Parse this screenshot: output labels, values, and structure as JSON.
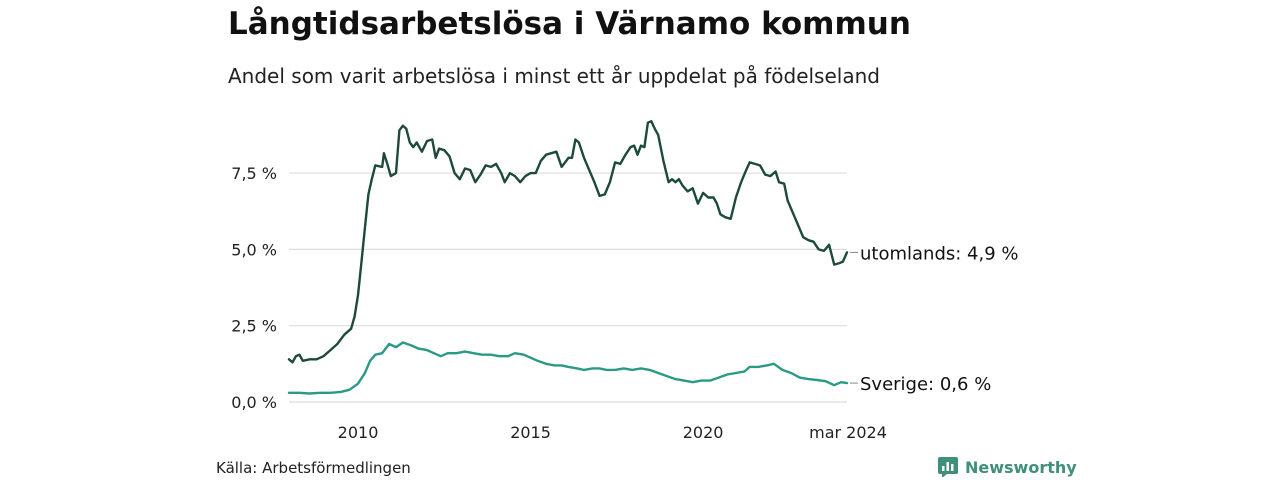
{
  "title": "Långtidsarbetslösa i Värnamo kommun",
  "subtitle": "Andel som varit arbetslösa i minst ett år uppdelat på födelseland",
  "source": "Källa: Arbetsförmedlingen",
  "brand": "Newsworthy",
  "colors": {
    "utomlands": "#1d4a3b",
    "sverige": "#2a9a86",
    "grid": "#dddddd",
    "brand": "#3f8f7a"
  },
  "chart_data": {
    "type": "line",
    "title": "Långtidsarbetslösa i Värnamo kommun",
    "subtitle": "Andel som varit arbetslösa i minst ett år uppdelat på födelseland",
    "xlabel": "",
    "ylabel": "",
    "xlim": [
      2008.0,
      2024.17
    ],
    "ylim": [
      0,
      9.5
    ],
    "grid": true,
    "x_ticks": [
      {
        "value": 2010,
        "label": "2010"
      },
      {
        "value": 2015,
        "label": "2015"
      },
      {
        "value": 2020,
        "label": "2020"
      },
      {
        "value": 2024.17,
        "label": "mar 2024"
      }
    ],
    "y_ticks": [
      {
        "value": 0,
        "label": "0,0 %"
      },
      {
        "value": 2.5,
        "label": "2,5 %"
      },
      {
        "value": 5,
        "label": "5,0 %"
      },
      {
        "value": 7.5,
        "label": "7,5 %"
      }
    ],
    "series": [
      {
        "name": "utomlands",
        "end_label": "utomlands: 4,9 %",
        "points": [
          [
            2008.0,
            1.4
          ],
          [
            2008.1,
            1.3
          ],
          [
            2008.2,
            1.5
          ],
          [
            2008.3,
            1.55
          ],
          [
            2008.4,
            1.35
          ],
          [
            2008.6,
            1.4
          ],
          [
            2008.8,
            1.4
          ],
          [
            2009.0,
            1.5
          ],
          [
            2009.2,
            1.7
          ],
          [
            2009.4,
            1.9
          ],
          [
            2009.6,
            2.2
          ],
          [
            2009.8,
            2.4
          ],
          [
            2009.9,
            2.8
          ],
          [
            2010.0,
            3.5
          ],
          [
            2010.1,
            4.6
          ],
          [
            2010.2,
            5.7
          ],
          [
            2010.3,
            6.8
          ],
          [
            2010.4,
            7.3
          ],
          [
            2010.5,
            7.75
          ],
          [
            2010.7,
            7.7
          ],
          [
            2010.75,
            8.15
          ],
          [
            2010.85,
            7.8
          ],
          [
            2010.95,
            7.4
          ],
          [
            2011.1,
            7.5
          ],
          [
            2011.2,
            8.9
          ],
          [
            2011.3,
            9.05
          ],
          [
            2011.4,
            8.95
          ],
          [
            2011.5,
            8.5
          ],
          [
            2011.6,
            8.35
          ],
          [
            2011.7,
            8.5
          ],
          [
            2011.85,
            8.2
          ],
          [
            2012.0,
            8.55
          ],
          [
            2012.15,
            8.6
          ],
          [
            2012.25,
            8.0
          ],
          [
            2012.35,
            8.3
          ],
          [
            2012.5,
            8.25
          ],
          [
            2012.65,
            8.05
          ],
          [
            2012.8,
            7.5
          ],
          [
            2012.95,
            7.3
          ],
          [
            2013.1,
            7.65
          ],
          [
            2013.25,
            7.6
          ],
          [
            2013.4,
            7.2
          ],
          [
            2013.55,
            7.45
          ],
          [
            2013.7,
            7.75
          ],
          [
            2013.85,
            7.7
          ],
          [
            2014.0,
            7.8
          ],
          [
            2014.15,
            7.5
          ],
          [
            2014.25,
            7.2
          ],
          [
            2014.4,
            7.5
          ],
          [
            2014.55,
            7.4
          ],
          [
            2014.7,
            7.2
          ],
          [
            2014.85,
            7.4
          ],
          [
            2015.0,
            7.5
          ],
          [
            2015.15,
            7.5
          ],
          [
            2015.3,
            7.9
          ],
          [
            2015.45,
            8.1
          ],
          [
            2015.6,
            8.15
          ],
          [
            2015.75,
            8.2
          ],
          [
            2015.9,
            7.7
          ],
          [
            2016.0,
            7.85
          ],
          [
            2016.1,
            8.0
          ],
          [
            2016.2,
            8.0
          ],
          [
            2016.3,
            8.6
          ],
          [
            2016.4,
            8.5
          ],
          [
            2016.55,
            8.0
          ],
          [
            2016.7,
            7.6
          ],
          [
            2016.85,
            7.2
          ],
          [
            2017.0,
            6.75
          ],
          [
            2017.15,
            6.8
          ],
          [
            2017.3,
            7.2
          ],
          [
            2017.45,
            7.85
          ],
          [
            2017.6,
            7.8
          ],
          [
            2017.75,
            8.1
          ],
          [
            2017.9,
            8.35
          ],
          [
            2018.0,
            8.4
          ],
          [
            2018.1,
            8.1
          ],
          [
            2018.2,
            8.4
          ],
          [
            2018.3,
            8.35
          ],
          [
            2018.4,
            9.15
          ],
          [
            2018.5,
            9.2
          ],
          [
            2018.6,
            8.95
          ],
          [
            2018.7,
            8.75
          ],
          [
            2018.85,
            7.9
          ],
          [
            2019.0,
            7.2
          ],
          [
            2019.1,
            7.3
          ],
          [
            2019.2,
            7.2
          ],
          [
            2019.3,
            7.3
          ],
          [
            2019.4,
            7.1
          ],
          [
            2019.55,
            6.9
          ],
          [
            2019.7,
            7.0
          ],
          [
            2019.85,
            6.5
          ],
          [
            2020.0,
            6.85
          ],
          [
            2020.15,
            6.7
          ],
          [
            2020.3,
            6.7
          ],
          [
            2020.4,
            6.5
          ],
          [
            2020.5,
            6.15
          ],
          [
            2020.65,
            6.05
          ],
          [
            2020.8,
            6.0
          ],
          [
            2020.95,
            6.7
          ],
          [
            2021.1,
            7.2
          ],
          [
            2021.25,
            7.6
          ],
          [
            2021.35,
            7.85
          ],
          [
            2021.5,
            7.8
          ],
          [
            2021.65,
            7.75
          ],
          [
            2021.8,
            7.45
          ],
          [
            2021.95,
            7.4
          ],
          [
            2022.1,
            7.55
          ],
          [
            2022.2,
            7.2
          ],
          [
            2022.35,
            7.15
          ],
          [
            2022.45,
            6.6
          ],
          [
            2022.6,
            6.2
          ],
          [
            2022.75,
            5.8
          ],
          [
            2022.9,
            5.4
          ],
          [
            2023.05,
            5.3
          ],
          [
            2023.2,
            5.25
          ],
          [
            2023.35,
            5.0
          ],
          [
            2023.5,
            4.95
          ],
          [
            2023.65,
            5.15
          ],
          [
            2023.8,
            4.5
          ],
          [
            2023.95,
            4.55
          ],
          [
            2024.05,
            4.6
          ],
          [
            2024.17,
            4.9
          ]
        ]
      },
      {
        "name": "sverige",
        "end_label": "Sverige: 0,6 %",
        "points": [
          [
            2008.0,
            0.3
          ],
          [
            2008.3,
            0.3
          ],
          [
            2008.6,
            0.28
          ],
          [
            2008.9,
            0.3
          ],
          [
            2009.2,
            0.3
          ],
          [
            2009.5,
            0.33
          ],
          [
            2009.75,
            0.4
          ],
          [
            2010.0,
            0.6
          ],
          [
            2010.2,
            0.95
          ],
          [
            2010.35,
            1.35
          ],
          [
            2010.5,
            1.55
          ],
          [
            2010.7,
            1.6
          ],
          [
            2010.9,
            1.9
          ],
          [
            2011.1,
            1.8
          ],
          [
            2011.3,
            1.95
          ],
          [
            2011.55,
            1.85
          ],
          [
            2011.75,
            1.75
          ],
          [
            2012.0,
            1.7
          ],
          [
            2012.2,
            1.6
          ],
          [
            2012.4,
            1.5
          ],
          [
            2012.6,
            1.6
          ],
          [
            2012.85,
            1.6
          ],
          [
            2013.1,
            1.65
          ],
          [
            2013.35,
            1.6
          ],
          [
            2013.6,
            1.55
          ],
          [
            2013.85,
            1.55
          ],
          [
            2014.1,
            1.5
          ],
          [
            2014.35,
            1.5
          ],
          [
            2014.55,
            1.6
          ],
          [
            2014.8,
            1.55
          ],
          [
            2015.0,
            1.45
          ],
          [
            2015.2,
            1.35
          ],
          [
            2015.45,
            1.25
          ],
          [
            2015.7,
            1.2
          ],
          [
            2015.9,
            1.2
          ],
          [
            2016.1,
            1.15
          ],
          [
            2016.35,
            1.1
          ],
          [
            2016.55,
            1.05
          ],
          [
            2016.8,
            1.1
          ],
          [
            2017.0,
            1.1
          ],
          [
            2017.2,
            1.05
          ],
          [
            2017.45,
            1.05
          ],
          [
            2017.7,
            1.1
          ],
          [
            2017.95,
            1.05
          ],
          [
            2018.2,
            1.1
          ],
          [
            2018.45,
            1.05
          ],
          [
            2018.7,
            0.95
          ],
          [
            2018.95,
            0.85
          ],
          [
            2019.2,
            0.75
          ],
          [
            2019.45,
            0.7
          ],
          [
            2019.7,
            0.65
          ],
          [
            2019.95,
            0.7
          ],
          [
            2020.2,
            0.7
          ],
          [
            2020.45,
            0.8
          ],
          [
            2020.7,
            0.9
          ],
          [
            2020.95,
            0.95
          ],
          [
            2021.2,
            1.0
          ],
          [
            2021.35,
            1.15
          ],
          [
            2021.6,
            1.15
          ],
          [
            2021.85,
            1.2
          ],
          [
            2022.05,
            1.25
          ],
          [
            2022.3,
            1.05
          ],
          [
            2022.55,
            0.95
          ],
          [
            2022.8,
            0.8
          ],
          [
            2023.05,
            0.75
          ],
          [
            2023.3,
            0.72
          ],
          [
            2023.55,
            0.68
          ],
          [
            2023.8,
            0.55
          ],
          [
            2024.0,
            0.65
          ],
          [
            2024.17,
            0.62
          ]
        ]
      }
    ]
  }
}
